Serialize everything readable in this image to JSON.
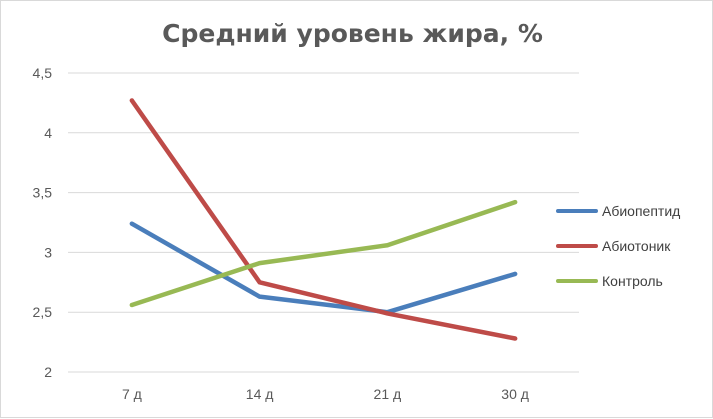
{
  "chart_data": {
    "type": "line",
    "title": "Средний уровень жира, %",
    "categories": [
      "7 д",
      "14 д",
      "21 д",
      "30 д"
    ],
    "ylim": [
      2,
      4.5
    ],
    "yticks": [
      "2",
      "2,5",
      "3",
      "3,5",
      "4",
      "4,5"
    ],
    "ytick_values": [
      2,
      2.5,
      3,
      3.5,
      4,
      4.5
    ],
    "grid": true,
    "legend_position": "right",
    "series": [
      {
        "name": "Абиопептид",
        "values": [
          3.24,
          2.63,
          2.5,
          2.82
        ],
        "color": "#4a7ebb"
      },
      {
        "name": "Абиотоник",
        "values": [
          4.27,
          2.75,
          2.49,
          2.28
        ],
        "color": "#be4b48"
      },
      {
        "name": "Контроль",
        "values": [
          2.56,
          2.91,
          3.06,
          3.42
        ],
        "color": "#98b954"
      }
    ]
  }
}
